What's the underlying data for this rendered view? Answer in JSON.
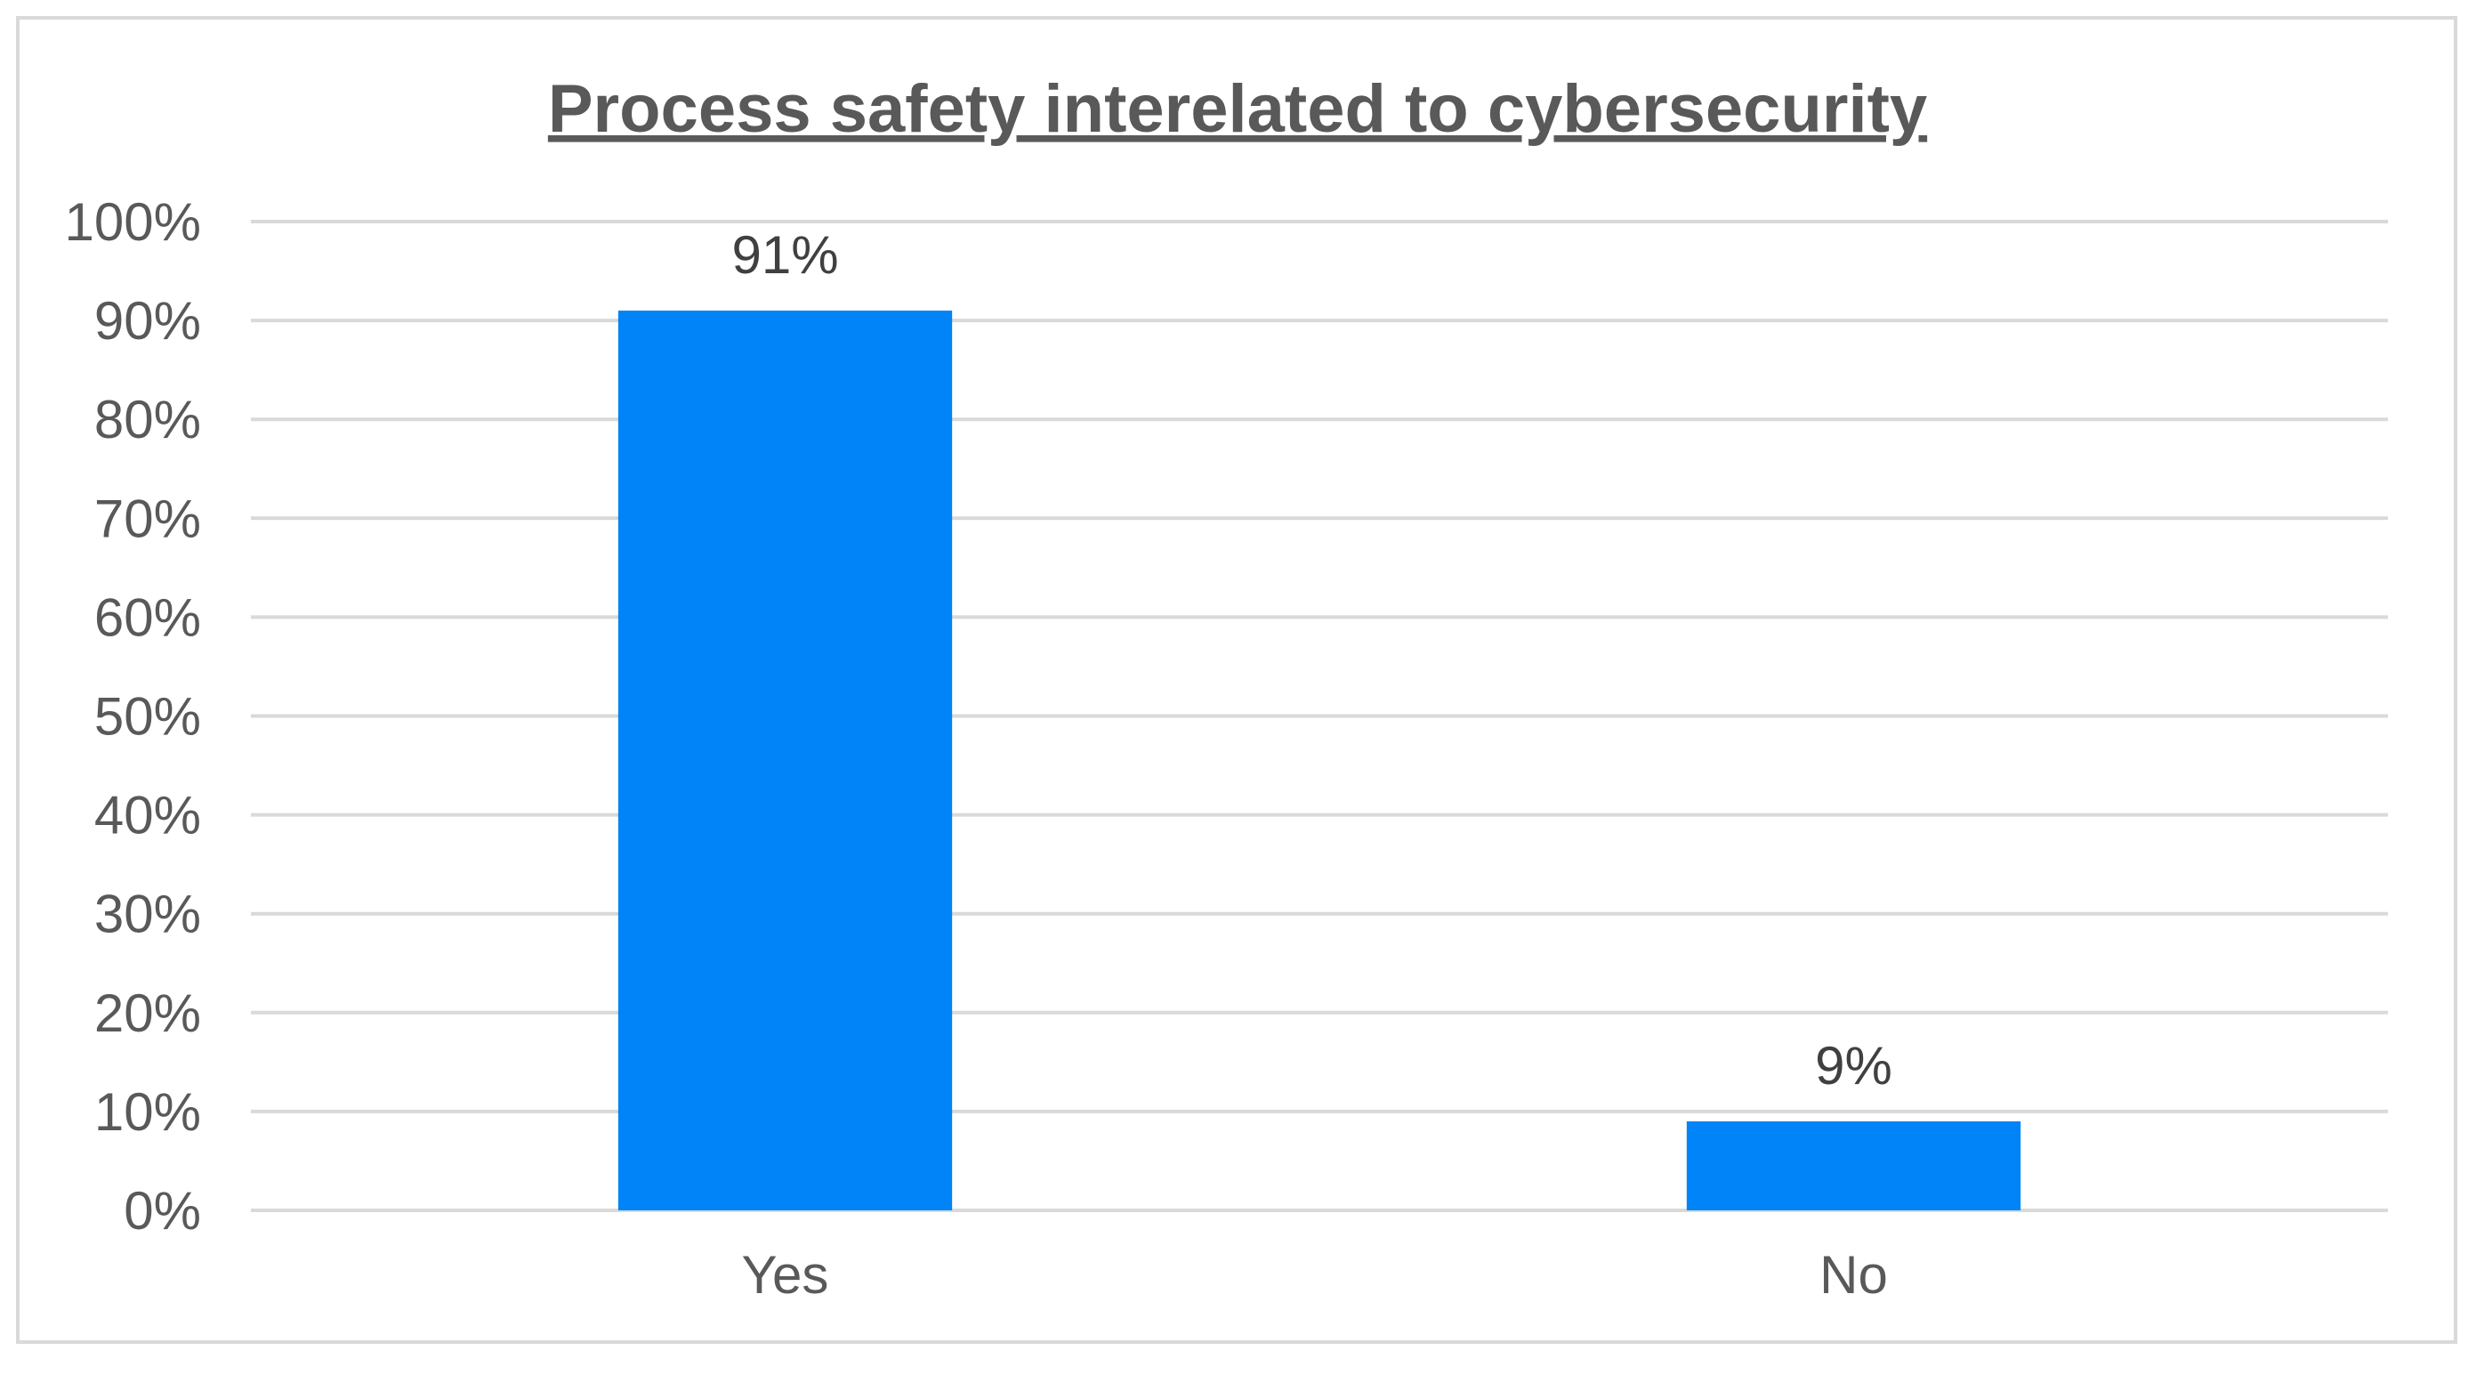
{
  "chart_data": {
    "type": "bar",
    "title": "Process safety interelated to cybersecurity",
    "categories": [
      "Yes",
      "No"
    ],
    "values": [
      91,
      9
    ],
    "data_labels": [
      "91%",
      "9%"
    ],
    "ylim": [
      0,
      100
    ],
    "y_ticks": [
      0,
      10,
      20,
      30,
      40,
      50,
      60,
      70,
      80,
      90,
      100
    ],
    "y_tick_labels": [
      "0%",
      "10%",
      "20%",
      "30%",
      "40%",
      "50%",
      "60%",
      "70%",
      "80%",
      "90%",
      "100%"
    ],
    "xlabel": "",
    "ylabel": "",
    "grid": true,
    "legend": "none",
    "bar_color": "#0084F8",
    "gridline_color": "#D9D9D9",
    "text_color": "#595959"
  }
}
